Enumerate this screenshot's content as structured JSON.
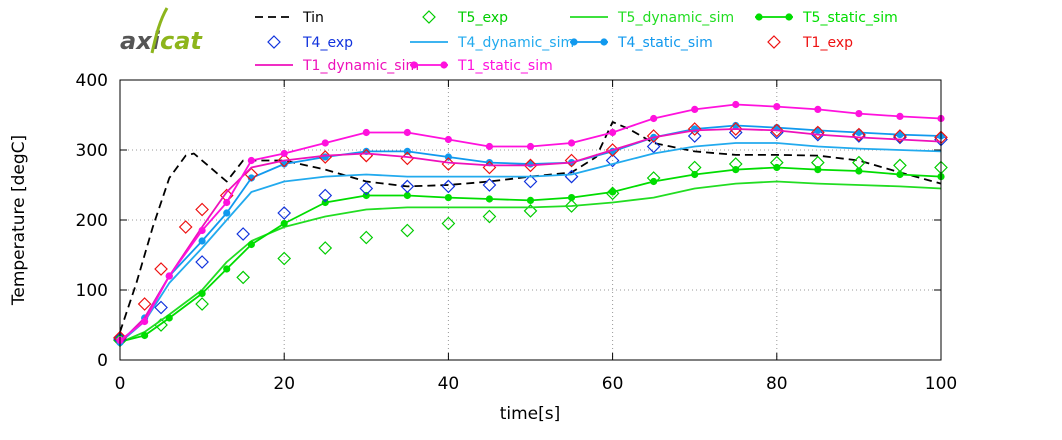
{
  "logo": {
    "part1": "axi",
    "part2": "cat",
    "color1": "#555555",
    "color2": "#8db51c"
  },
  "chart_data": {
    "type": "line",
    "title": "",
    "xlabel": "time[s]",
    "ylabel": "Temperature [degC]",
    "xlim": [
      0,
      100
    ],
    "ylim": [
      0,
      400
    ],
    "xticks": [
      0,
      20,
      40,
      60,
      80,
      100
    ],
    "yticks": [
      0,
      100,
      200,
      300,
      400
    ],
    "xtick_labels": [
      "0",
      "20",
      "40",
      "60",
      "80",
      "100"
    ],
    "ytick_labels": [
      "0",
      "100",
      "200",
      "300",
      "400"
    ],
    "grid": true,
    "legend_position": "top",
    "series": [
      {
        "name": "Tin",
        "color": "#000000",
        "style": "dashed",
        "marker": "none",
        "x": [
          0,
          2,
          4,
          6,
          8,
          9,
          11,
          13,
          15,
          20,
          25,
          30,
          35,
          40,
          45,
          50,
          55,
          58,
          60,
          62,
          65,
          70,
          75,
          80,
          85,
          90,
          95,
          100
        ],
        "y": [
          40,
          110,
          190,
          260,
          292,
          295,
          275,
          255,
          285,
          285,
          272,
          255,
          248,
          250,
          255,
          262,
          268,
          290,
          340,
          330,
          310,
          298,
          293,
          293,
          292,
          285,
          268,
          252
        ]
      },
      {
        "name": "T5_exp",
        "color": "#00cc00",
        "style": "none",
        "marker": "diamond-open",
        "x": [
          0,
          5,
          10,
          15,
          20,
          25,
          30,
          35,
          40,
          45,
          50,
          55,
          60,
          65,
          70,
          75,
          80,
          85,
          90,
          95,
          100
        ],
        "y": [
          28,
          50,
          80,
          118,
          145,
          160,
          175,
          185,
          195,
          205,
          213,
          220,
          238,
          260,
          275,
          280,
          282,
          282,
          282,
          278,
          275
        ]
      },
      {
        "name": "T5_dynamic_sim",
        "color": "#22dd22",
        "style": "solid",
        "marker": "none",
        "x": [
          0,
          3,
          6,
          10,
          13,
          16,
          20,
          25,
          30,
          35,
          40,
          45,
          50,
          55,
          60,
          65,
          70,
          75,
          80,
          85,
          90,
          95,
          100
        ],
        "y": [
          25,
          40,
          65,
          100,
          140,
          170,
          190,
          205,
          215,
          218,
          218,
          218,
          218,
          220,
          225,
          232,
          245,
          252,
          255,
          252,
          250,
          248,
          245
        ]
      },
      {
        "name": "T5_static_sim",
        "color": "#00dd00",
        "style": "solid",
        "marker": "circle-filled",
        "x": [
          0,
          3,
          6,
          10,
          13,
          16,
          20,
          25,
          30,
          35,
          40,
          45,
          50,
          55,
          60,
          65,
          70,
          75,
          80,
          85,
          90,
          95,
          100
        ],
        "y": [
          26,
          35,
          60,
          95,
          130,
          165,
          195,
          225,
          235,
          235,
          232,
          230,
          228,
          232,
          240,
          255,
          265,
          272,
          275,
          272,
          270,
          265,
          262
        ]
      },
      {
        "name": "T4_exp",
        "color": "#1133dd",
        "style": "none",
        "marker": "diamond-open",
        "x": [
          0,
          5,
          10,
          15,
          20,
          25,
          30,
          35,
          40,
          45,
          50,
          55,
          60,
          65,
          70,
          75,
          80,
          85,
          90,
          95,
          100
        ],
        "y": [
          30,
          75,
          140,
          180,
          210,
          235,
          245,
          248,
          248,
          250,
          255,
          262,
          285,
          305,
          320,
          325,
          325,
          322,
          320,
          318,
          315
        ]
      },
      {
        "name": "T4_dynamic_sim",
        "color": "#22aaee",
        "style": "solid",
        "marker": "none",
        "x": [
          0,
          3,
          6,
          10,
          13,
          16,
          20,
          25,
          30,
          35,
          40,
          45,
          50,
          55,
          60,
          65,
          70,
          75,
          80,
          85,
          90,
          95,
          100
        ],
        "y": [
          25,
          55,
          110,
          160,
          200,
          240,
          255,
          262,
          265,
          262,
          262,
          262,
          262,
          265,
          280,
          295,
          305,
          310,
          310,
          305,
          302,
          300,
          298
        ]
      },
      {
        "name": "T4_static_sim",
        "color": "#1199ee",
        "style": "solid",
        "marker": "circle-filled",
        "x": [
          0,
          3,
          6,
          10,
          13,
          16,
          20,
          25,
          30,
          35,
          40,
          45,
          50,
          55,
          60,
          65,
          70,
          75,
          80,
          85,
          90,
          95,
          100
        ],
        "y": [
          25,
          60,
          120,
          170,
          210,
          260,
          280,
          290,
          298,
          298,
          290,
          282,
          280,
          282,
          298,
          318,
          330,
          335,
          332,
          328,
          325,
          322,
          320
        ]
      },
      {
        "name": "T1_exp",
        "color": "#ee1111",
        "style": "none",
        "marker": "diamond-open",
        "x": [
          0,
          3,
          5,
          8,
          10,
          13,
          16,
          20,
          25,
          30,
          35,
          40,
          45,
          50,
          55,
          60,
          65,
          70,
          75,
          80,
          85,
          90,
          95,
          100
        ],
        "y": [
          32,
          80,
          130,
          190,
          215,
          235,
          265,
          285,
          290,
          292,
          288,
          280,
          275,
          278,
          285,
          300,
          320,
          330,
          330,
          328,
          325,
          322,
          320,
          318
        ]
      },
      {
        "name": "T1_dynamic_sim",
        "color": "#ee11bb",
        "style": "solid",
        "marker": "none",
        "x": [
          0,
          3,
          6,
          10,
          13,
          16,
          20,
          25,
          30,
          35,
          40,
          45,
          50,
          55,
          60,
          65,
          70,
          75,
          80,
          85,
          90,
          95,
          100
        ],
        "y": [
          25,
          60,
          120,
          190,
          240,
          275,
          285,
          292,
          295,
          290,
          282,
          278,
          278,
          282,
          300,
          318,
          328,
          330,
          328,
          322,
          318,
          315,
          312
        ]
      },
      {
        "name": "T1_static_sim",
        "color": "#ff11dd",
        "style": "solid",
        "marker": "circle-filled",
        "x": [
          0,
          3,
          6,
          10,
          13,
          16,
          20,
          25,
          30,
          35,
          40,
          45,
          50,
          55,
          60,
          65,
          70,
          75,
          80,
          85,
          90,
          95,
          100
        ],
        "y": [
          28,
          55,
          120,
          185,
          225,
          285,
          295,
          310,
          325,
          325,
          315,
          305,
          305,
          310,
          325,
          345,
          358,
          365,
          362,
          358,
          352,
          348,
          345
        ]
      }
    ]
  }
}
